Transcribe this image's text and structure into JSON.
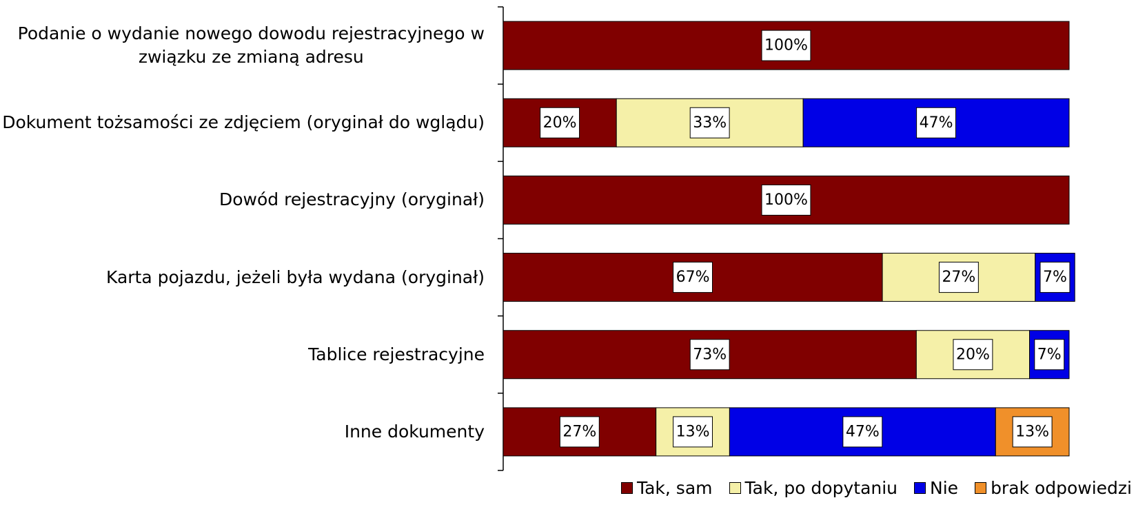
{
  "chart_data": {
    "type": "stacked-bar-horizontal",
    "categories": [
      "Podanie o wydanie nowego dowodu rejestracyjnego w\nzwiązku ze zmianą adresu",
      "Dokument tożsamości ze zdjęciem (oryginał do wglądu)",
      "Dowód rejestracyjny (oryginał) ",
      "Karta pojazdu, jeżeli była wydana (oryginał) ",
      "Tablice rejestracyjne",
      "Inne dokumenty "
    ],
    "xlim": [
      0,
      100
    ],
    "series": [
      {
        "name": "Tak, sam",
        "color": "#800000",
        "values": [
          100,
          20,
          100,
          67,
          73,
          27
        ],
        "value_labels": [
          "100%",
          "20%",
          "100%",
          "67%",
          "73%",
          "27%"
        ]
      },
      {
        "name": "Tak, po dopytaniu",
        "color": "#f5f0a8",
        "values": [
          null,
          33,
          null,
          27,
          20,
          13
        ],
        "value_labels": [
          null,
          "33%",
          null,
          "27%",
          "20%",
          "13%"
        ]
      },
      {
        "name": "Nie",
        "color": "#0000e6",
        "values": [
          null,
          47,
          null,
          7,
          7,
          47
        ],
        "value_labels": [
          null,
          "47%",
          null,
          "7%",
          "7%",
          "47%"
        ]
      },
      {
        "name": "brak odpowiedzi",
        "color": "#f0902a",
        "values": [
          null,
          null,
          null,
          null,
          null,
          13
        ],
        "value_labels": [
          null,
          null,
          null,
          null,
          null,
          "13%"
        ]
      }
    ],
    "legend": "bottom"
  }
}
